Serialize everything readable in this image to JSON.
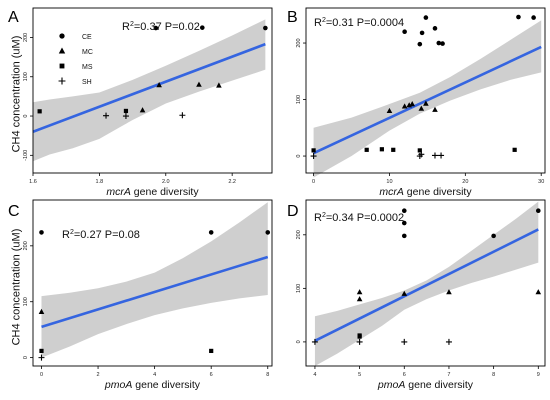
{
  "figure": {
    "ylabel": "CH4 concentration (uM)",
    "legend": [
      {
        "label": "CE",
        "marker": "circle"
      },
      {
        "label": "MC",
        "marker": "triangle"
      },
      {
        "label": "MS",
        "marker": "square"
      },
      {
        "label": "SH",
        "marker": "plus"
      }
    ],
    "colors": {
      "fit_line": "#3565e0",
      "ci_band": "#cfcfcf",
      "points": "#000000"
    }
  },
  "chart_data": [
    {
      "type": "scatter",
      "panel": "A",
      "xlabel": [
        "mcrA",
        " gene diversity"
      ],
      "ylabel": "CH4 concentration (uM)",
      "xlim": [
        1.6,
        2.32
      ],
      "ylim": [
        -145,
        275
      ],
      "xticks": [
        1.6,
        1.8,
        2.0,
        2.2
      ],
      "xtick_labels": [
        "1.6",
        "1.8",
        "2.0",
        "2.2"
      ],
      "yticks": [
        -100,
        0,
        100,
        200
      ],
      "ytick_labels": [
        "-100",
        "0",
        "100",
        "200"
      ],
      "stats": [
        "R",
        "2",
        "=0.37   P=0.02"
      ],
      "legend_position": "top-left",
      "fit": {
        "x": [
          1.6,
          2.3
        ],
        "y": [
          -40,
          183
        ]
      },
      "band": {
        "x": [
          1.6,
          1.65,
          1.72,
          1.8,
          1.9,
          2.0,
          2.1,
          2.2,
          2.3
        ],
        "upper": [
          35,
          42,
          50,
          60,
          92,
          128,
          166,
          205,
          246
        ],
        "lower": [
          -115,
          -98,
          -82,
          -58,
          -10,
          32,
          62,
          90,
          118
        ]
      },
      "points": [
        {
          "group": "CE",
          "x": 1.97,
          "y": 224
        },
        {
          "group": "CE",
          "x": 2.11,
          "y": 225
        },
        {
          "group": "CE",
          "x": 2.3,
          "y": 224
        },
        {
          "group": "MC",
          "x": 1.93,
          "y": 15
        },
        {
          "group": "MC",
          "x": 1.98,
          "y": 79
        },
        {
          "group": "MC",
          "x": 2.1,
          "y": 80
        },
        {
          "group": "MC",
          "x": 2.16,
          "y": 78
        },
        {
          "group": "MS",
          "x": 1.62,
          "y": 12
        },
        {
          "group": "MS",
          "x": 1.88,
          "y": 13
        },
        {
          "group": "SH",
          "x": 1.82,
          "y": 1
        },
        {
          "group": "SH",
          "x": 1.88,
          "y": 0
        },
        {
          "group": "SH",
          "x": 2.05,
          "y": 2
        }
      ]
    },
    {
      "type": "scatter",
      "panel": "B",
      "xlabel": [
        "mcrA",
        " gene diversity"
      ],
      "xlim": [
        -1,
        30.5
      ],
      "ylim": [
        -30,
        262
      ],
      "xticks": [
        0,
        10,
        20,
        30
      ],
      "xtick_labels": [
        "0",
        "10",
        "20",
        "30"
      ],
      "yticks": [
        0,
        100,
        200
      ],
      "ytick_labels": [
        "0",
        "100",
        "200"
      ],
      "stats": [
        "R",
        "2",
        "=0.31   P=0.0004"
      ],
      "fit": {
        "x": [
          0,
          30
        ],
        "y": [
          5,
          193
        ]
      },
      "band": {
        "x": [
          0,
          5,
          10,
          14,
          18,
          22,
          26,
          30
        ],
        "upper": [
          50,
          68,
          92,
          112,
          140,
          172,
          206,
          240
        ],
        "lower": [
          -38,
          0,
          45,
          75,
          98,
          118,
          135,
          148
        ]
      },
      "points": [
        {
          "group": "CE",
          "x": 12,
          "y": 220
        },
        {
          "group": "CE",
          "x": 14,
          "y": 198
        },
        {
          "group": "CE",
          "x": 14.3,
          "y": 218
        },
        {
          "group": "CE",
          "x": 14.8,
          "y": 245
        },
        {
          "group": "CE",
          "x": 16,
          "y": 226
        },
        {
          "group": "CE",
          "x": 16.5,
          "y": 200
        },
        {
          "group": "CE",
          "x": 17,
          "y": 199
        },
        {
          "group": "CE",
          "x": 27,
          "y": 246
        },
        {
          "group": "CE",
          "x": 29,
          "y": 245
        },
        {
          "group": "MC",
          "x": 10,
          "y": 80
        },
        {
          "group": "MC",
          "x": 12,
          "y": 88
        },
        {
          "group": "MC",
          "x": 12.6,
          "y": 90
        },
        {
          "group": "MC",
          "x": 13,
          "y": 92
        },
        {
          "group": "MC",
          "x": 14.2,
          "y": 84
        },
        {
          "group": "MC",
          "x": 14.8,
          "y": 93
        },
        {
          "group": "MC",
          "x": 16,
          "y": 82
        },
        {
          "group": "MS",
          "x": 0,
          "y": 10
        },
        {
          "group": "MS",
          "x": 7,
          "y": 11
        },
        {
          "group": "MS",
          "x": 9,
          "y": 12
        },
        {
          "group": "MS",
          "x": 10.5,
          "y": 11
        },
        {
          "group": "MS",
          "x": 14,
          "y": 10
        },
        {
          "group": "MS",
          "x": 26.5,
          "y": 11
        },
        {
          "group": "SH",
          "x": 0,
          "y": 0
        },
        {
          "group": "SH",
          "x": 14,
          "y": 0
        },
        {
          "group": "SH",
          "x": 14.2,
          "y": 3
        },
        {
          "group": "SH",
          "x": 16,
          "y": 1
        },
        {
          "group": "SH",
          "x": 16.8,
          "y": 1
        }
      ]
    },
    {
      "type": "scatter",
      "panel": "C",
      "xlabel": [
        "pmoA",
        " gene diversity"
      ],
      "ylabel": "CH4 concentration (uM)",
      "xlim": [
        -0.3,
        8.15
      ],
      "ylim": [
        -15,
        282
      ],
      "xticks": [
        0,
        2,
        4,
        6,
        8
      ],
      "xtick_labels": [
        "0",
        "2",
        "4",
        "6",
        "8"
      ],
      "yticks": [
        0,
        100,
        200
      ],
      "ytick_labels": [
        "0",
        "100",
        "200"
      ],
      "stats": [
        "R",
        "2",
        "=0.27   P=0.08"
      ],
      "fit": {
        "x": [
          0,
          8
        ],
        "y": [
          55,
          180
        ]
      },
      "band": {
        "x": [
          0,
          1,
          2,
          3,
          4,
          5,
          6,
          7,
          8
        ],
        "upper": [
          110,
          116,
          124,
          136,
          152,
          178,
          208,
          242,
          278
        ],
        "lower": [
          0,
          20,
          42,
          60,
          76,
          88,
          98,
          106,
          112
        ]
      },
      "points": [
        {
          "group": "CE",
          "x": 0,
          "y": 224
        },
        {
          "group": "CE",
          "x": 6,
          "y": 224
        },
        {
          "group": "CE",
          "x": 8,
          "y": 224
        },
        {
          "group": "MC",
          "x": 0,
          "y": 82
        },
        {
          "group": "MS",
          "x": 0,
          "y": 12
        },
        {
          "group": "MS",
          "x": 6,
          "y": 12
        },
        {
          "group": "SH",
          "x": 0,
          "y": 0
        }
      ]
    },
    {
      "type": "scatter",
      "panel": "D",
      "xlabel": [
        "pmoA",
        " gene diversity"
      ],
      "xlim": [
        3.8,
        9.15
      ],
      "ylim": [
        -45,
        265
      ],
      "xticks": [
        4,
        5,
        6,
        7,
        8,
        9
      ],
      "xtick_labels": [
        "4",
        "5",
        "6",
        "7",
        "8",
        "9"
      ],
      "yticks": [
        0,
        100,
        200
      ],
      "ytick_labels": [
        "0",
        "100",
        "200"
      ],
      "stats": [
        "R",
        "2",
        "=0.34   P=0.0002"
      ],
      "fit": {
        "x": [
          4,
          9
        ],
        "y": [
          2,
          210
        ]
      },
      "band": {
        "x": [
          4,
          4.5,
          5,
          5.5,
          6,
          6.5,
          7,
          7.5,
          8,
          8.5,
          9
        ],
        "upper": [
          48,
          58,
          70,
          82,
          96,
          115,
          140,
          170,
          200,
          230,
          262
        ],
        "lower": [
          -45,
          -22,
          4,
          30,
          60,
          80,
          96,
          110,
          122,
          135,
          148
        ]
      },
      "points": [
        {
          "group": "CE",
          "x": 6,
          "y": 245
        },
        {
          "group": "CE",
          "x": 6,
          "y": 222
        },
        {
          "group": "CE",
          "x": 6,
          "y": 198
        },
        {
          "group": "CE",
          "x": 8,
          "y": 198
        },
        {
          "group": "CE",
          "x": 9,
          "y": 245
        },
        {
          "group": "MC",
          "x": 5,
          "y": 93
        },
        {
          "group": "MC",
          "x": 5,
          "y": 80
        },
        {
          "group": "MC",
          "x": 6,
          "y": 90
        },
        {
          "group": "MC",
          "x": 7,
          "y": 93
        },
        {
          "group": "MC",
          "x": 9,
          "y": 93
        },
        {
          "group": "MS",
          "x": 5,
          "y": 12
        },
        {
          "group": "MS",
          "x": 5,
          "y": 10
        },
        {
          "group": "SH",
          "x": 4,
          "y": 0
        },
        {
          "group": "SH",
          "x": 5,
          "y": 0
        },
        {
          "group": "SH",
          "x": 6,
          "y": 0
        },
        {
          "group": "SH",
          "x": 7,
          "y": 0
        }
      ]
    }
  ]
}
